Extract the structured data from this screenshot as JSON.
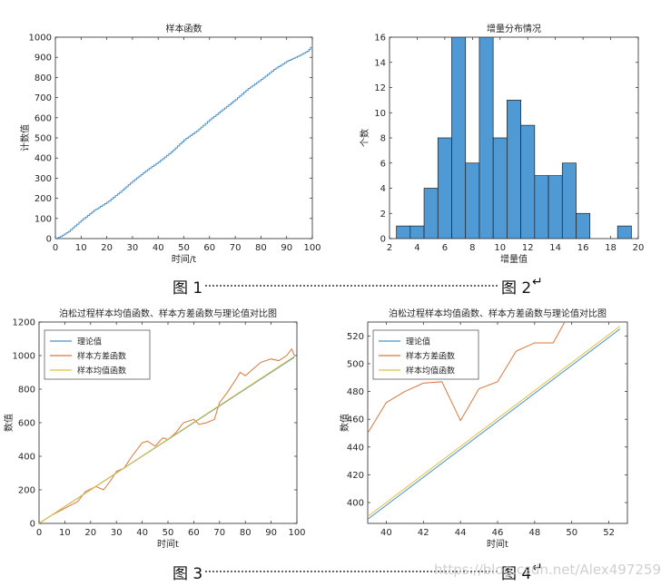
{
  "chart_data": [
    {
      "type": "line",
      "step": true,
      "title": "样本函数",
      "xlabel": "时间/t",
      "ylabel": "计数值",
      "xlim": [
        0,
        100
      ],
      "ylim": [
        0,
        1000
      ],
      "xticks": [
        0,
        10,
        20,
        30,
        40,
        50,
        60,
        70,
        80,
        90,
        100
      ],
      "yticks": [
        0,
        100,
        200,
        300,
        400,
        500,
        600,
        700,
        800,
        900,
        1000
      ],
      "color": "#4a90c8",
      "x": [
        2,
        5,
        10,
        15,
        20,
        25,
        30,
        35,
        40,
        45,
        50,
        55,
        60,
        65,
        70,
        75,
        80,
        85,
        90,
        95,
        98,
        100
      ],
      "y": [
        10,
        35,
        90,
        140,
        180,
        230,
        285,
        335,
        380,
        430,
        490,
        535,
        590,
        640,
        690,
        745,
        790,
        840,
        880,
        910,
        930,
        960
      ]
    },
    {
      "type": "bar",
      "histogram": true,
      "title": "增量分布情况",
      "xlabel": "增量值",
      "ylabel": "个数",
      "xlim": [
        2,
        20
      ],
      "ylim": [
        0,
        16
      ],
      "xticks": [
        2,
        4,
        6,
        8,
        10,
        12,
        14,
        16,
        18,
        20
      ],
      "yticks": [
        0,
        2,
        4,
        6,
        8,
        10,
        12,
        14,
        16
      ],
      "color": "#4f9ad4",
      "bin_edges": [
        2.5,
        3.5,
        4.5,
        5.5,
        6.5,
        7.5,
        8.5,
        9.5,
        10.5,
        11.5,
        12.5,
        13.5,
        14.5,
        15.5,
        16.5,
        17.5,
        18.5,
        19.5
      ],
      "values": [
        1,
        1,
        4,
        8,
        16,
        6,
        16,
        8,
        11,
        9,
        5,
        5,
        6,
        2,
        0,
        0,
        1
      ]
    },
    {
      "type": "line",
      "title": "泊松过程样本均值函数、样本方差函数与理论值对比图",
      "xlabel": "时间t",
      "ylabel": "数值",
      "xlim": [
        0,
        100
      ],
      "ylim": [
        0,
        1200
      ],
      "xticks": [
        0,
        10,
        20,
        30,
        40,
        50,
        60,
        70,
        80,
        90,
        100
      ],
      "yticks": [
        0,
        200,
        400,
        600,
        800,
        1000,
        1200
      ],
      "legend_position": "top-left",
      "series": [
        {
          "name": "理论值",
          "color": "#4a90c8",
          "x": [
            0,
            99
          ],
          "y": [
            0,
            990
          ]
        },
        {
          "name": "样本方差函数",
          "color": "#d9773a",
          "x": [
            0,
            5,
            10,
            15,
            18,
            22,
            25,
            28,
            30,
            33,
            36,
            40,
            42,
            45,
            48,
            50,
            53,
            56,
            60,
            62,
            65,
            68,
            70,
            73,
            76,
            78,
            80,
            83,
            86,
            90,
            93,
            96,
            98,
            99
          ],
          "y": [
            0,
            50,
            90,
            130,
            190,
            220,
            200,
            260,
            310,
            330,
            400,
            480,
            490,
            460,
            510,
            500,
            540,
            600,
            620,
            590,
            600,
            620,
            720,
            780,
            850,
            900,
            880,
            920,
            960,
            980,
            970,
            1000,
            1040,
            1000
          ]
        },
        {
          "name": "样本均值函数",
          "color": "#e0c040",
          "x": [
            0,
            99
          ],
          "y": [
            0,
            995
          ]
        }
      ]
    },
    {
      "type": "line",
      "title": "泊松过程样本均值函数、样本方差函数与理论值对比图",
      "xlabel": "时间t",
      "ylabel": "数值",
      "xlim": [
        39,
        53
      ],
      "ylim": [
        385,
        530
      ],
      "xticks": [
        40,
        42,
        44,
        46,
        48,
        50,
        52
      ],
      "yticks": [
        400,
        420,
        440,
        460,
        480,
        500,
        520
      ],
      "legend_position": "top-left",
      "series": [
        {
          "name": "理论值",
          "color": "#4a90c8",
          "x": [
            39,
            52.6
          ],
          "y": [
            388,
            525
          ]
        },
        {
          "name": "样本方差函数",
          "color": "#d9773a",
          "x": [
            39,
            40,
            41,
            42,
            43,
            44,
            45,
            46,
            47,
            48,
            49,
            49.7
          ],
          "y": [
            450,
            472,
            480,
            486,
            487,
            459,
            482,
            487,
            509,
            515,
            515,
            532
          ]
        },
        {
          "name": "样本均值函数",
          "color": "#e0c040",
          "x": [
            39,
            52.6
          ],
          "y": [
            390,
            527
          ]
        }
      ]
    }
  ],
  "captions": {
    "fig1": "图 1",
    "fig2": "图 2",
    "fig3": "图 3",
    "fig4": "图 4",
    "return_mark": "↵"
  },
  "watermark": "https://blog.csdn.net/Alex497259"
}
